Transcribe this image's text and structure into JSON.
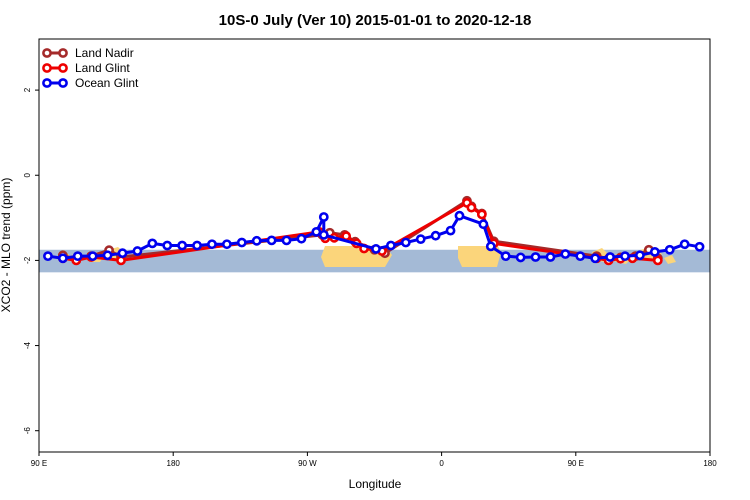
{
  "chart_data": {
    "type": "line",
    "title": "10S-0 July (Ver 10)   2015-01-01 to 2020-12-18",
    "xlabel": "Longitude",
    "ylabel": "XCO2 - MLO trend (ppm)",
    "xlim": [
      90,
      540
    ],
    "ylim": [
      -6.5,
      3.2
    ],
    "x_ticks": [
      {
        "value": 90,
        "label": "90 E"
      },
      {
        "value": 180,
        "label": "180"
      },
      {
        "value": 270,
        "label": "90 W"
      },
      {
        "value": 360,
        "label": "0"
      },
      {
        "value": 450,
        "label": "90 E"
      },
      {
        "value": 540,
        "label": "180"
      }
    ],
    "y_ticks": [
      {
        "value": 2,
        "label": "2"
      },
      {
        "value": 0,
        "label": "0"
      },
      {
        "value": -2,
        "label": "-2"
      },
      {
        "value": -4,
        "label": "-4"
      },
      {
        "value": -6,
        "label": "-6"
      }
    ],
    "legend_position": "top-left",
    "map_band": {
      "lat_south": -10,
      "lat_north": 0,
      "ocean_color": "#a4bad6",
      "land_color": "#fbd57b",
      "y_bottom": -2.28,
      "y_top": -1.75
    },
    "series": [
      {
        "name": "Land Nadir",
        "color": "#a52a2a",
        "points": [
          [
            106,
            -1.88
          ],
          [
            115,
            -1.98
          ],
          [
            125,
            -1.9
          ],
          [
            137,
            -1.76
          ],
          [
            145,
            -1.92
          ],
          [
            280,
            -1.4
          ],
          [
            285,
            -1.35
          ],
          [
            295,
            -1.4
          ],
          [
            302,
            -1.56
          ],
          [
            315,
            -1.75
          ],
          [
            322,
            -1.83
          ],
          [
            377,
            -0.6
          ],
          [
            380,
            -0.73
          ],
          [
            387,
            -0.9
          ],
          [
            395,
            -1.55
          ],
          [
            464,
            -1.9
          ],
          [
            472,
            -1.96
          ],
          [
            480,
            -1.93
          ],
          [
            490,
            -1.9
          ],
          [
            499,
            -1.75
          ],
          [
            505,
            -1.95
          ]
        ]
      },
      {
        "name": "Land Glint",
        "color": "#ee0000",
        "points": [
          [
            106,
            -1.95
          ],
          [
            115,
            -2.0
          ],
          [
            125,
            -1.92
          ],
          [
            145,
            -2.0
          ],
          [
            278,
            -1.33
          ],
          [
            282,
            -1.48
          ],
          [
            288,
            -1.47
          ],
          [
            296,
            -1.43
          ],
          [
            303,
            -1.6
          ],
          [
            308,
            -1.72
          ],
          [
            320,
            -1.78
          ],
          [
            377,
            -0.65
          ],
          [
            380,
            -0.76
          ],
          [
            387,
            -0.92
          ],
          [
            395,
            -1.6
          ],
          [
            464,
            -1.95
          ],
          [
            472,
            -2.0
          ],
          [
            480,
            -1.96
          ],
          [
            488,
            -1.95
          ],
          [
            505,
            -2.0
          ]
        ]
      },
      {
        "name": "Ocean Glint",
        "color": "#0000ee",
        "points": [
          [
            96,
            -1.9
          ],
          [
            106,
            -1.95
          ],
          [
            116,
            -1.9
          ],
          [
            126,
            -1.9
          ],
          [
            136,
            -1.88
          ],
          [
            146,
            -1.83
          ],
          [
            156,
            -1.78
          ],
          [
            166,
            -1.6
          ],
          [
            176,
            -1.65
          ],
          [
            186,
            -1.65
          ],
          [
            196,
            -1.65
          ],
          [
            206,
            -1.62
          ],
          [
            216,
            -1.62
          ],
          [
            226,
            -1.58
          ],
          [
            236,
            -1.54
          ],
          [
            246,
            -1.53
          ],
          [
            256,
            -1.53
          ],
          [
            266,
            -1.49
          ],
          [
            276,
            -1.33
          ],
          [
            281,
            -0.98
          ],
          [
            281,
            -1.4
          ],
          [
            316,
            -1.73
          ],
          [
            326,
            -1.65
          ],
          [
            336,
            -1.58
          ],
          [
            346,
            -1.5
          ],
          [
            356,
            -1.42
          ],
          [
            366,
            -1.3
          ],
          [
            372,
            -0.95
          ],
          [
            388,
            -1.15
          ],
          [
            393,
            -1.67
          ],
          [
            403,
            -1.9
          ],
          [
            413,
            -1.93
          ],
          [
            423,
            -1.92
          ],
          [
            433,
            -1.92
          ],
          [
            443,
            -1.85
          ],
          [
            453,
            -1.9
          ],
          [
            463,
            -1.95
          ],
          [
            473,
            -1.92
          ],
          [
            483,
            -1.9
          ],
          [
            493,
            -1.88
          ],
          [
            503,
            -1.8
          ],
          [
            513,
            -1.75
          ],
          [
            523,
            -1.62
          ],
          [
            533,
            -1.68
          ]
        ]
      }
    ]
  }
}
